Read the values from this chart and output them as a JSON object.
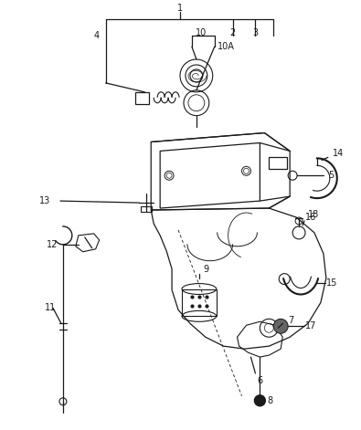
{
  "background_color": "#ffffff",
  "line_color": "#1a1a1a",
  "text_color": "#1a1a1a",
  "figsize": [
    3.95,
    4.71
  ],
  "dpi": 100
}
